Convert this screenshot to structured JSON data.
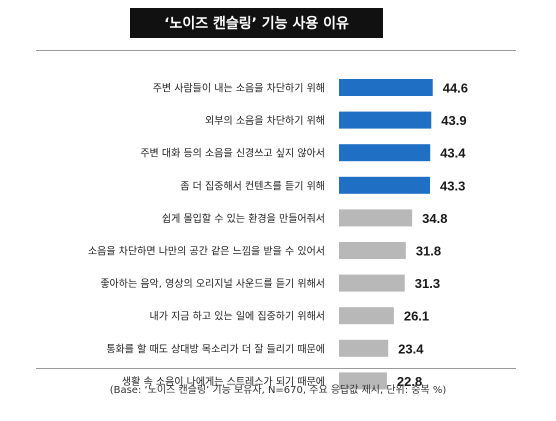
{
  "title": "‘노이즈 캔슬링’ 기능 사용 이유",
  "footnote": "(Base: ‘노이즈 캔슬링’ 기능 보유자, N=670, 주요 응답값 제시, 단위: 중복 %)",
  "colors": {
    "highlight": "#1f6fc5",
    "normal": "#b8b8b8",
    "title_bg": "#111111"
  },
  "chart_data": {
    "type": "bar",
    "orientation": "horizontal",
    "categories": [
      "주변 사람들이 내는 소음을 차단하기 위해",
      "외부의 소음을 차단하기 위해",
      "주변 대화 등의 소음을 신경쓰고 싶지 않아서",
      "좀 더 집중해서 컨텐츠를 듣기 위해",
      "쉽게 몰입할 수 있는 환경을 만들어줘서",
      "소음을 차단하면 나만의 공간 같은 느낌을 받을 수 있어서",
      "좋아하는 음악, 영상의 오리지널 사운드를 듣기 위해서",
      "내가 지금 하고 있는 일에 집중하기 위해서",
      "통화를 할 때도 상대방 목소리가 더 잘 들리기 때문에",
      "생활 속 소음이 나에게는 스트레스가 되기 때문에"
    ],
    "values": [
      44.6,
      43.9,
      43.4,
      43.3,
      34.8,
      31.8,
      31.3,
      26.1,
      23.4,
      22.8
    ],
    "labels": [
      "44.6",
      "43.9",
      "43.4",
      "43.3",
      "34.8",
      "31.8",
      "31.3",
      "26.1",
      "23.4",
      "22.8"
    ],
    "highlight_top": 4,
    "grid": false,
    "legend": "none"
  }
}
